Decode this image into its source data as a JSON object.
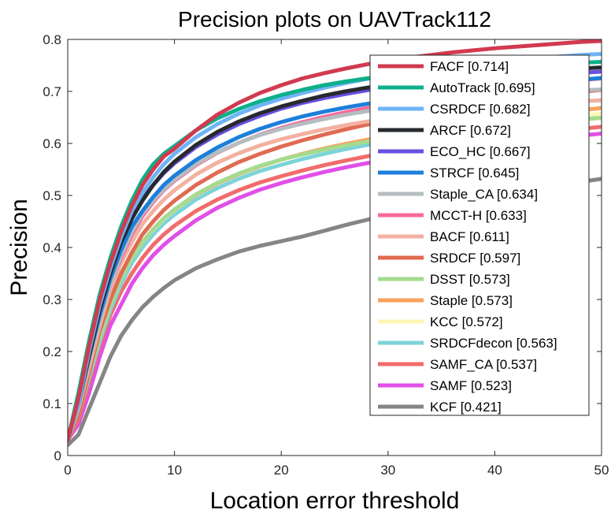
{
  "chart_data": {
    "type": "line",
    "title": "Precision plots on UAVTrack112",
    "xlabel": "Location error threshold",
    "ylabel": "Precision",
    "xlim": [
      0,
      50
    ],
    "ylim": [
      0,
      0.8
    ],
    "xticks": [
      "0",
      "10",
      "20",
      "30",
      "40",
      "50"
    ],
    "yticks": [
      "0",
      "0.1",
      "0.2",
      "0.3",
      "0.4",
      "0.5",
      "0.6",
      "0.7",
      "0.8"
    ],
    "grid": false,
    "legend_position": "top-right",
    "x": [
      0,
      1,
      2,
      3,
      4,
      5,
      6,
      7,
      8,
      9,
      10,
      12,
      14,
      16,
      18,
      20,
      22,
      24,
      26,
      28,
      30,
      32,
      34,
      36,
      38,
      40,
      42,
      44,
      46,
      48,
      50
    ],
    "series": [
      {
        "name": "FACF [0.714]",
        "color": "#d13a4f",
        "values": [
          0.03,
          0.11,
          0.21,
          0.3,
          0.37,
          0.43,
          0.48,
          0.52,
          0.55,
          0.575,
          0.59,
          0.625,
          0.655,
          0.678,
          0.697,
          0.712,
          0.725,
          0.735,
          0.744,
          0.752,
          0.759,
          0.765,
          0.77,
          0.775,
          0.779,
          0.783,
          0.786,
          0.789,
          0.792,
          0.795,
          0.797
        ]
      },
      {
        "name": "AutoTrack [0.695]",
        "color": "#0db08a",
        "values": [
          0.03,
          0.12,
          0.22,
          0.31,
          0.38,
          0.44,
          0.49,
          0.53,
          0.56,
          0.58,
          0.595,
          0.625,
          0.648,
          0.666,
          0.681,
          0.693,
          0.703,
          0.712,
          0.719,
          0.725,
          0.73,
          0.734,
          0.738,
          0.741,
          0.744,
          0.747,
          0.749,
          0.751,
          0.753,
          0.755,
          0.757
        ]
      },
      {
        "name": "CSRDCF [0.682]",
        "color": "#6eb3f5",
        "values": [
          0.03,
          0.1,
          0.2,
          0.29,
          0.36,
          0.42,
          0.47,
          0.505,
          0.535,
          0.56,
          0.58,
          0.612,
          0.637,
          0.657,
          0.673,
          0.686,
          0.697,
          0.707,
          0.716,
          0.724,
          0.731,
          0.737,
          0.743,
          0.748,
          0.753,
          0.757,
          0.761,
          0.764,
          0.767,
          0.77,
          0.772
        ]
      },
      {
        "name": "ARCF [0.672]",
        "color": "#262a2e",
        "values": [
          0.03,
          0.1,
          0.19,
          0.28,
          0.35,
          0.41,
          0.455,
          0.49,
          0.52,
          0.545,
          0.565,
          0.597,
          0.622,
          0.642,
          0.658,
          0.671,
          0.682,
          0.692,
          0.7,
          0.707,
          0.713,
          0.718,
          0.723,
          0.727,
          0.731,
          0.734,
          0.737,
          0.74,
          0.742,
          0.744,
          0.746
        ]
      },
      {
        "name": "ECO_HC [0.667]",
        "color": "#6a4fe0",
        "values": [
          0.03,
          0.11,
          0.2,
          0.29,
          0.36,
          0.415,
          0.46,
          0.495,
          0.52,
          0.543,
          0.562,
          0.593,
          0.617,
          0.637,
          0.653,
          0.667,
          0.678,
          0.687,
          0.695,
          0.702,
          0.708,
          0.713,
          0.717,
          0.721,
          0.724,
          0.727,
          0.73,
          0.732,
          0.734,
          0.736,
          0.738
        ]
      },
      {
        "name": "STRCF [0.645]",
        "color": "#1c7fdb",
        "values": [
          0.03,
          0.1,
          0.19,
          0.27,
          0.34,
          0.395,
          0.44,
          0.47,
          0.497,
          0.52,
          0.538,
          0.568,
          0.592,
          0.612,
          0.628,
          0.641,
          0.652,
          0.661,
          0.669,
          0.676,
          0.682,
          0.688,
          0.693,
          0.698,
          0.702,
          0.706,
          0.71,
          0.714,
          0.718,
          0.722,
          0.726
        ]
      },
      {
        "name": "Staple_CA [0.634]",
        "color": "#b4bdc1",
        "values": [
          0.03,
          0.09,
          0.18,
          0.26,
          0.33,
          0.385,
          0.43,
          0.465,
          0.49,
          0.512,
          0.53,
          0.56,
          0.583,
          0.601,
          0.616,
          0.628,
          0.638,
          0.647,
          0.655,
          0.662,
          0.668,
          0.673,
          0.678,
          0.682,
          0.686,
          0.69,
          0.693,
          0.696,
          0.699,
          0.702,
          0.704
        ]
      },
      {
        "name": "MCCT-H [0.633]",
        "color": "#f56a9a",
        "values": [
          0.03,
          0.09,
          0.18,
          0.26,
          0.33,
          0.38,
          0.425,
          0.46,
          0.487,
          0.51,
          0.528,
          0.558,
          0.582,
          0.601,
          0.617,
          0.63,
          0.641,
          0.651,
          0.66,
          0.668,
          0.675,
          0.682,
          0.688,
          0.694,
          0.699,
          0.704,
          0.709,
          0.714,
          0.718,
          0.722,
          0.725
        ]
      },
      {
        "name": "BACF [0.611]",
        "color": "#f4b0a0",
        "values": [
          0.03,
          0.09,
          0.17,
          0.25,
          0.32,
          0.37,
          0.41,
          0.445,
          0.47,
          0.492,
          0.51,
          0.54,
          0.563,
          0.581,
          0.596,
          0.608,
          0.618,
          0.627,
          0.635,
          0.642,
          0.648,
          0.653,
          0.658,
          0.662,
          0.666,
          0.67,
          0.673,
          0.676,
          0.679,
          0.681,
          0.683
        ]
      },
      {
        "name": "SRDCF [0.597]",
        "color": "#e06a52",
        "values": [
          0.03,
          0.08,
          0.16,
          0.24,
          0.3,
          0.35,
          0.39,
          0.425,
          0.45,
          0.472,
          0.49,
          0.52,
          0.544,
          0.564,
          0.58,
          0.594,
          0.606,
          0.617,
          0.627,
          0.636,
          0.644,
          0.652,
          0.659,
          0.666,
          0.672,
          0.678,
          0.684,
          0.689,
          0.694,
          0.699,
          0.703
        ]
      },
      {
        "name": "DSST [0.573]",
        "color": "#a4db8e",
        "values": [
          0.03,
          0.08,
          0.16,
          0.23,
          0.29,
          0.34,
          0.38,
          0.41,
          0.435,
          0.456,
          0.473,
          0.502,
          0.524,
          0.542,
          0.557,
          0.569,
          0.579,
          0.588,
          0.596,
          0.603,
          0.609,
          0.615,
          0.62,
          0.625,
          0.629,
          0.633,
          0.637,
          0.64,
          0.643,
          0.646,
          0.649
        ]
      },
      {
        "name": "Staple [0.573]",
        "color": "#f7a35c",
        "values": [
          0.03,
          0.08,
          0.16,
          0.23,
          0.29,
          0.34,
          0.38,
          0.41,
          0.435,
          0.456,
          0.473,
          0.501,
          0.523,
          0.541,
          0.556,
          0.569,
          0.58,
          0.59,
          0.599,
          0.607,
          0.615,
          0.622,
          0.628,
          0.634,
          0.64,
          0.645,
          0.65,
          0.655,
          0.66,
          0.664,
          0.668
        ]
      },
      {
        "name": "KCC [0.572]",
        "color": "#fbf7b5",
        "values": [
          0.03,
          0.08,
          0.16,
          0.23,
          0.29,
          0.34,
          0.38,
          0.41,
          0.434,
          0.455,
          0.472,
          0.501,
          0.523,
          0.541,
          0.556,
          0.569,
          0.58,
          0.59,
          0.599,
          0.607,
          0.614,
          0.62,
          0.626,
          0.631,
          0.636,
          0.64,
          0.644,
          0.648,
          0.651,
          0.654,
          0.657
        ]
      },
      {
        "name": "SRDCFdecon [0.563]",
        "color": "#7dd3d9",
        "values": [
          0.03,
          0.08,
          0.15,
          0.22,
          0.28,
          0.33,
          0.37,
          0.4,
          0.425,
          0.446,
          0.463,
          0.492,
          0.514,
          0.532,
          0.547,
          0.559,
          0.57,
          0.58,
          0.589,
          0.597,
          0.604,
          0.611,
          0.617,
          0.623,
          0.628,
          0.633,
          0.638,
          0.643,
          0.647,
          0.651,
          0.655
        ]
      },
      {
        "name": "SAMF_CA [0.537]",
        "color": "#f26b6b",
        "values": [
          0.03,
          0.07,
          0.14,
          0.21,
          0.27,
          0.315,
          0.35,
          0.38,
          0.405,
          0.425,
          0.442,
          0.47,
          0.492,
          0.51,
          0.525,
          0.537,
          0.548,
          0.558,
          0.567,
          0.575,
          0.582,
          0.589,
          0.595,
          0.601,
          0.606,
          0.611,
          0.616,
          0.62,
          0.624,
          0.628,
          0.632
        ]
      },
      {
        "name": "SAMF [0.523]",
        "color": "#e14fe8",
        "values": [
          0.03,
          0.06,
          0.12,
          0.19,
          0.25,
          0.29,
          0.33,
          0.36,
          0.385,
          0.405,
          0.422,
          0.452,
          0.476,
          0.495,
          0.511,
          0.524,
          0.535,
          0.545,
          0.554,
          0.562,
          0.569,
          0.576,
          0.582,
          0.588,
          0.593,
          0.598,
          0.603,
          0.607,
          0.611,
          0.615,
          0.619
        ]
      },
      {
        "name": "KCF [0.421]",
        "color": "#858585",
        "values": [
          0.02,
          0.04,
          0.09,
          0.14,
          0.19,
          0.23,
          0.26,
          0.285,
          0.305,
          0.322,
          0.337,
          0.36,
          0.377,
          0.392,
          0.403,
          0.412,
          0.421,
          0.432,
          0.443,
          0.453,
          0.463,
          0.472,
          0.48,
          0.488,
          0.495,
          0.502,
          0.508,
          0.514,
          0.52,
          0.526,
          0.532
        ]
      }
    ]
  }
}
